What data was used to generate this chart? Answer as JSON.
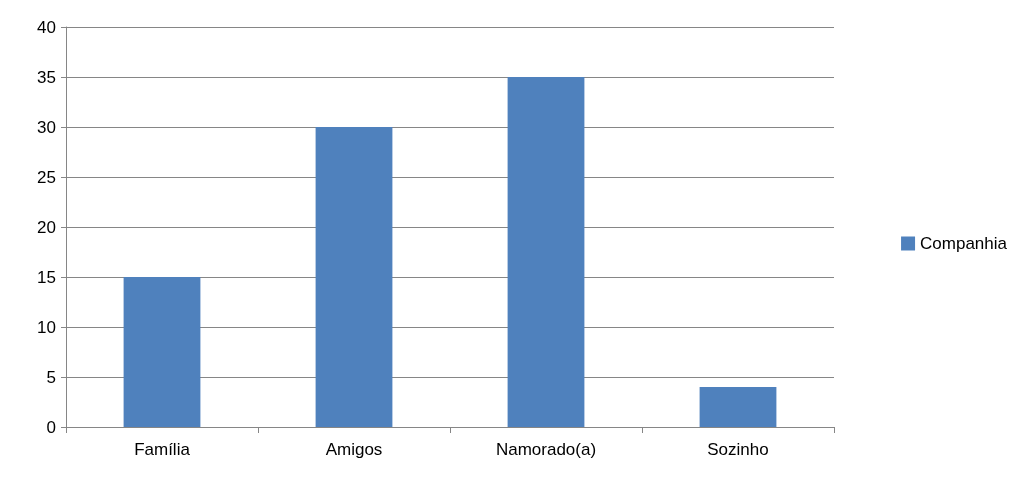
{
  "chart_data": {
    "type": "bar",
    "categories": [
      "Família",
      "Amigos",
      "Namorado(a)",
      "Sozinho"
    ],
    "series": [
      {
        "name": "Companhia",
        "color": "#4f81bd",
        "values": [
          15,
          30,
          35,
          4
        ]
      }
    ],
    "ylim": [
      0,
      40
    ],
    "yticks": [
      0,
      5,
      10,
      15,
      20,
      25,
      30,
      35,
      40
    ],
    "grid": "y",
    "legend": "right"
  }
}
